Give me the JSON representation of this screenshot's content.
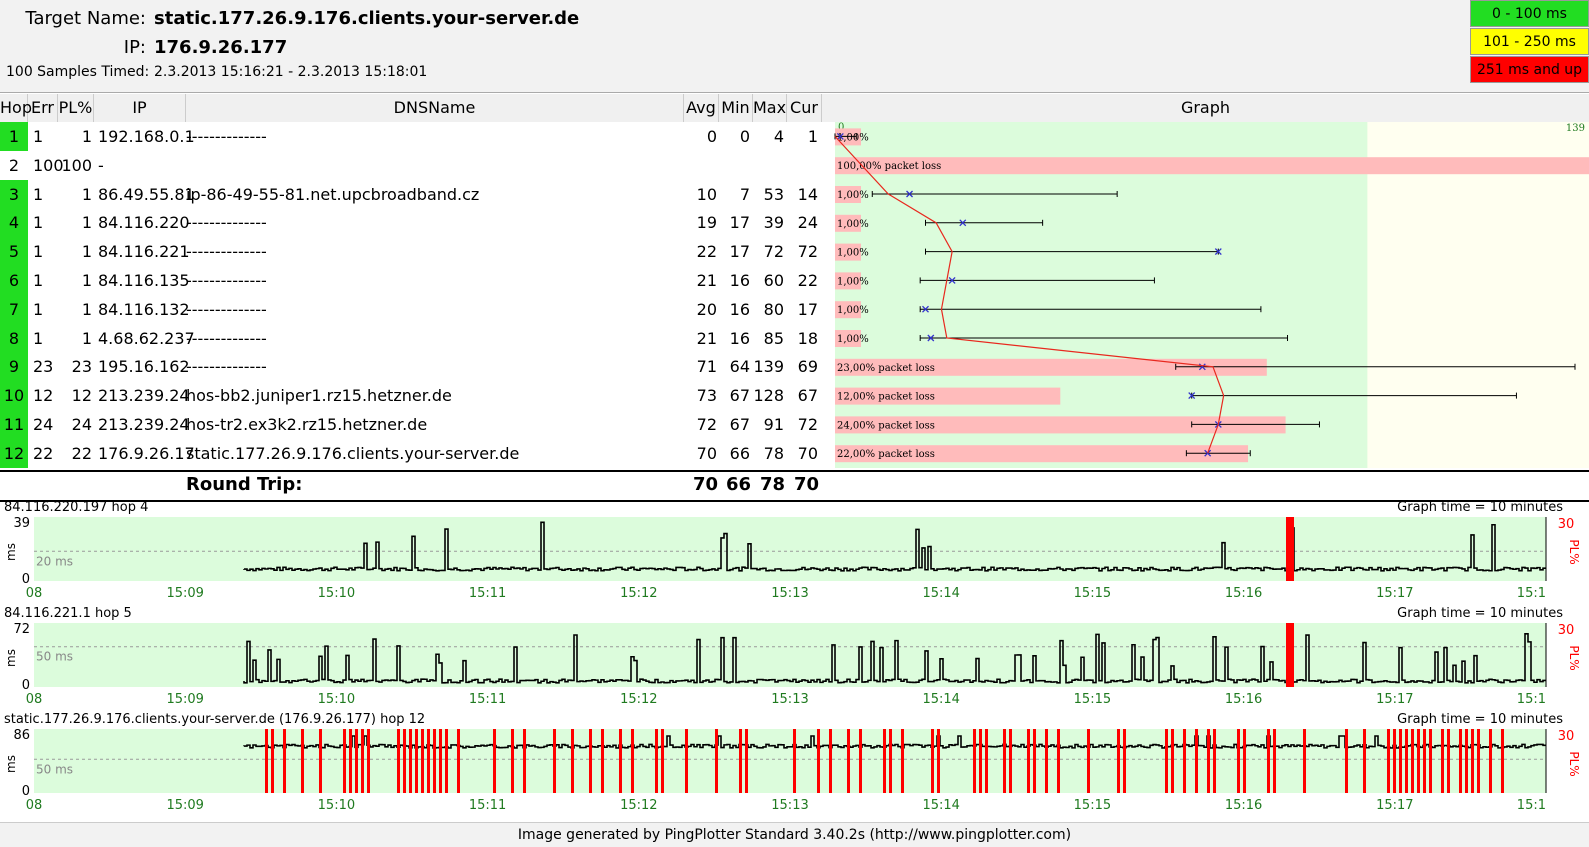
{
  "header": {
    "target_label": "Target Name:",
    "target_value": "static.177.26.9.176.clients.your-server.de",
    "ip_label": "IP:",
    "ip_value": "176.9.26.177",
    "samples_label": "100 Samples Timed:",
    "samples_value": "2.3.2013 15:16:21 - 2.3.2013 15:18:01"
  },
  "legend": [
    {
      "label": "0 - 100 ms",
      "color": "#22dd22"
    },
    {
      "label": "101 - 250 ms",
      "color": "#ffff00"
    },
    {
      "label": "251 ms and up",
      "color": "#ff0000"
    }
  ],
  "columns": {
    "hop": "Hop",
    "err": "Err",
    "pl": "PL%",
    "ip": "IP",
    "dns": "DNSName",
    "avg": "Avg",
    "min": "Min",
    "max": "Max",
    "cur": "Cur",
    "graph": "Graph"
  },
  "graph_scale": {
    "min_label": "0",
    "max_label": "139",
    "max_ms": 139
  },
  "hops": [
    {
      "hop": "1",
      "err": "1",
      "pl": "1",
      "ip": "192.168.0.1",
      "dns": "--------------",
      "avg": "0",
      "min": "0",
      "max": "4",
      "cur": "1",
      "pl_label": "1,00%",
      "pl_value": 1
    },
    {
      "hop": "2",
      "err": "100",
      "pl": "100",
      "ip": "-",
      "dns": "",
      "avg": "",
      "min": "",
      "max": "",
      "cur": "",
      "pl_label": "100,00% packet loss",
      "pl_value": 100
    },
    {
      "hop": "3",
      "err": "1",
      "pl": "1",
      "ip": "86.49.55.81",
      "dns": "ip-86-49-55-81.net.upcbroadband.cz",
      "avg": "10",
      "min": "7",
      "max": "53",
      "cur": "14",
      "pl_label": "1,00%",
      "pl_value": 1
    },
    {
      "hop": "4",
      "err": "1",
      "pl": "1",
      "ip": "84.116.220",
      "dns": "--------------",
      "avg": "19",
      "min": "17",
      "max": "39",
      "cur": "24",
      "pl_label": "1,00%",
      "pl_value": 1
    },
    {
      "hop": "5",
      "err": "1",
      "pl": "1",
      "ip": "84.116.221",
      "dns": "--------------",
      "avg": "22",
      "min": "17",
      "max": "72",
      "cur": "72",
      "pl_label": "1,00%",
      "pl_value": 1
    },
    {
      "hop": "6",
      "err": "1",
      "pl": "1",
      "ip": "84.116.135",
      "dns": "--------------",
      "avg": "21",
      "min": "16",
      "max": "60",
      "cur": "22",
      "pl_label": "1,00%",
      "pl_value": 1
    },
    {
      "hop": "7",
      "err": "1",
      "pl": "1",
      "ip": "84.116.132",
      "dns": "--------------",
      "avg": "20",
      "min": "16",
      "max": "80",
      "cur": "17",
      "pl_label": "1,00%",
      "pl_value": 1
    },
    {
      "hop": "8",
      "err": "1",
      "pl": "1",
      "ip": "4.68.62.237",
      "dns": "--------------",
      "avg": "21",
      "min": "16",
      "max": "85",
      "cur": "18",
      "pl_label": "1,00%",
      "pl_value": 1
    },
    {
      "hop": "9",
      "err": "23",
      "pl": "23",
      "ip": "195.16.162",
      "dns": "--------------",
      "avg": "71",
      "min": "64",
      "max": "139",
      "cur": "69",
      "pl_label": "23,00% packet loss",
      "pl_value": 23
    },
    {
      "hop": "10",
      "err": "12",
      "pl": "12",
      "ip": "213.239.24",
      "dns": "hos-bb2.juniper1.rz15.hetzner.de",
      "avg": "73",
      "min": "67",
      "max": "128",
      "cur": "67",
      "pl_label": "12,00% packet loss",
      "pl_value": 12
    },
    {
      "hop": "11",
      "err": "24",
      "pl": "24",
      "ip": "213.239.24",
      "dns": "hos-tr2.ex3k2.rz15.hetzner.de",
      "avg": "72",
      "min": "67",
      "max": "91",
      "cur": "72",
      "pl_label": "24,00% packet loss",
      "pl_value": 24
    },
    {
      "hop": "12",
      "err": "22",
      "pl": "22",
      "ip": "176.9.26.17",
      "dns": "static.177.26.9.176.clients.your-server.de",
      "avg": "70",
      "min": "66",
      "max": "78",
      "cur": "70",
      "pl_label": "22,00% packet loss",
      "pl_value": 22
    }
  ],
  "round_trip": {
    "label": "Round Trip:",
    "avg": "70",
    "min": "66",
    "max": "78",
    "cur": "70"
  },
  "time_axis": [
    "08",
    "15:09",
    "15:10",
    "15:11",
    "15:12",
    "15:13",
    "15:14",
    "15:15",
    "15:16",
    "15:17",
    "15:1"
  ],
  "mini_graphs": [
    {
      "title": "84.116.220.197 hop 4",
      "graph_time": "Graph time = 10 minutes",
      "y_max": "39",
      "y_unit": "ms",
      "y_min": "0",
      "ref": "20 ms",
      "pl_max": "30",
      "pl_unit": "PL%",
      "ref_ms": 20,
      "max_ms": 39
    },
    {
      "title": "84.116.221.1 hop 5",
      "graph_time": "Graph time = 10 minutes",
      "y_max": "72",
      "y_unit": "ms",
      "y_min": "0",
      "ref": "50 ms",
      "pl_max": "30",
      "pl_unit": "PL%",
      "ref_ms": 50,
      "max_ms": 72
    },
    {
      "title": "static.177.26.9.176.clients.your-server.de (176.9.26.177) hop 12",
      "graph_time": "Graph time = 10 minutes",
      "y_max": "86",
      "y_unit": "ms",
      "y_min": "0",
      "ref": "50 ms",
      "pl_max": "30",
      "pl_unit": "PL%",
      "ref_ms": 50,
      "max_ms": 86
    }
  ],
  "footer": "Image generated by PingPlotter Standard 3.40.2s (http://www.pingplotter.com)",
  "colors": {
    "good_bg": "#dcfcdc",
    "warn_bg": "#fffff0",
    "loss_bar": "#ffbbbb",
    "line": "#e8281e",
    "marker": "#3333cc",
    "axis_text": "#1f7a1f",
    "loss_red": "#ff0000"
  }
}
